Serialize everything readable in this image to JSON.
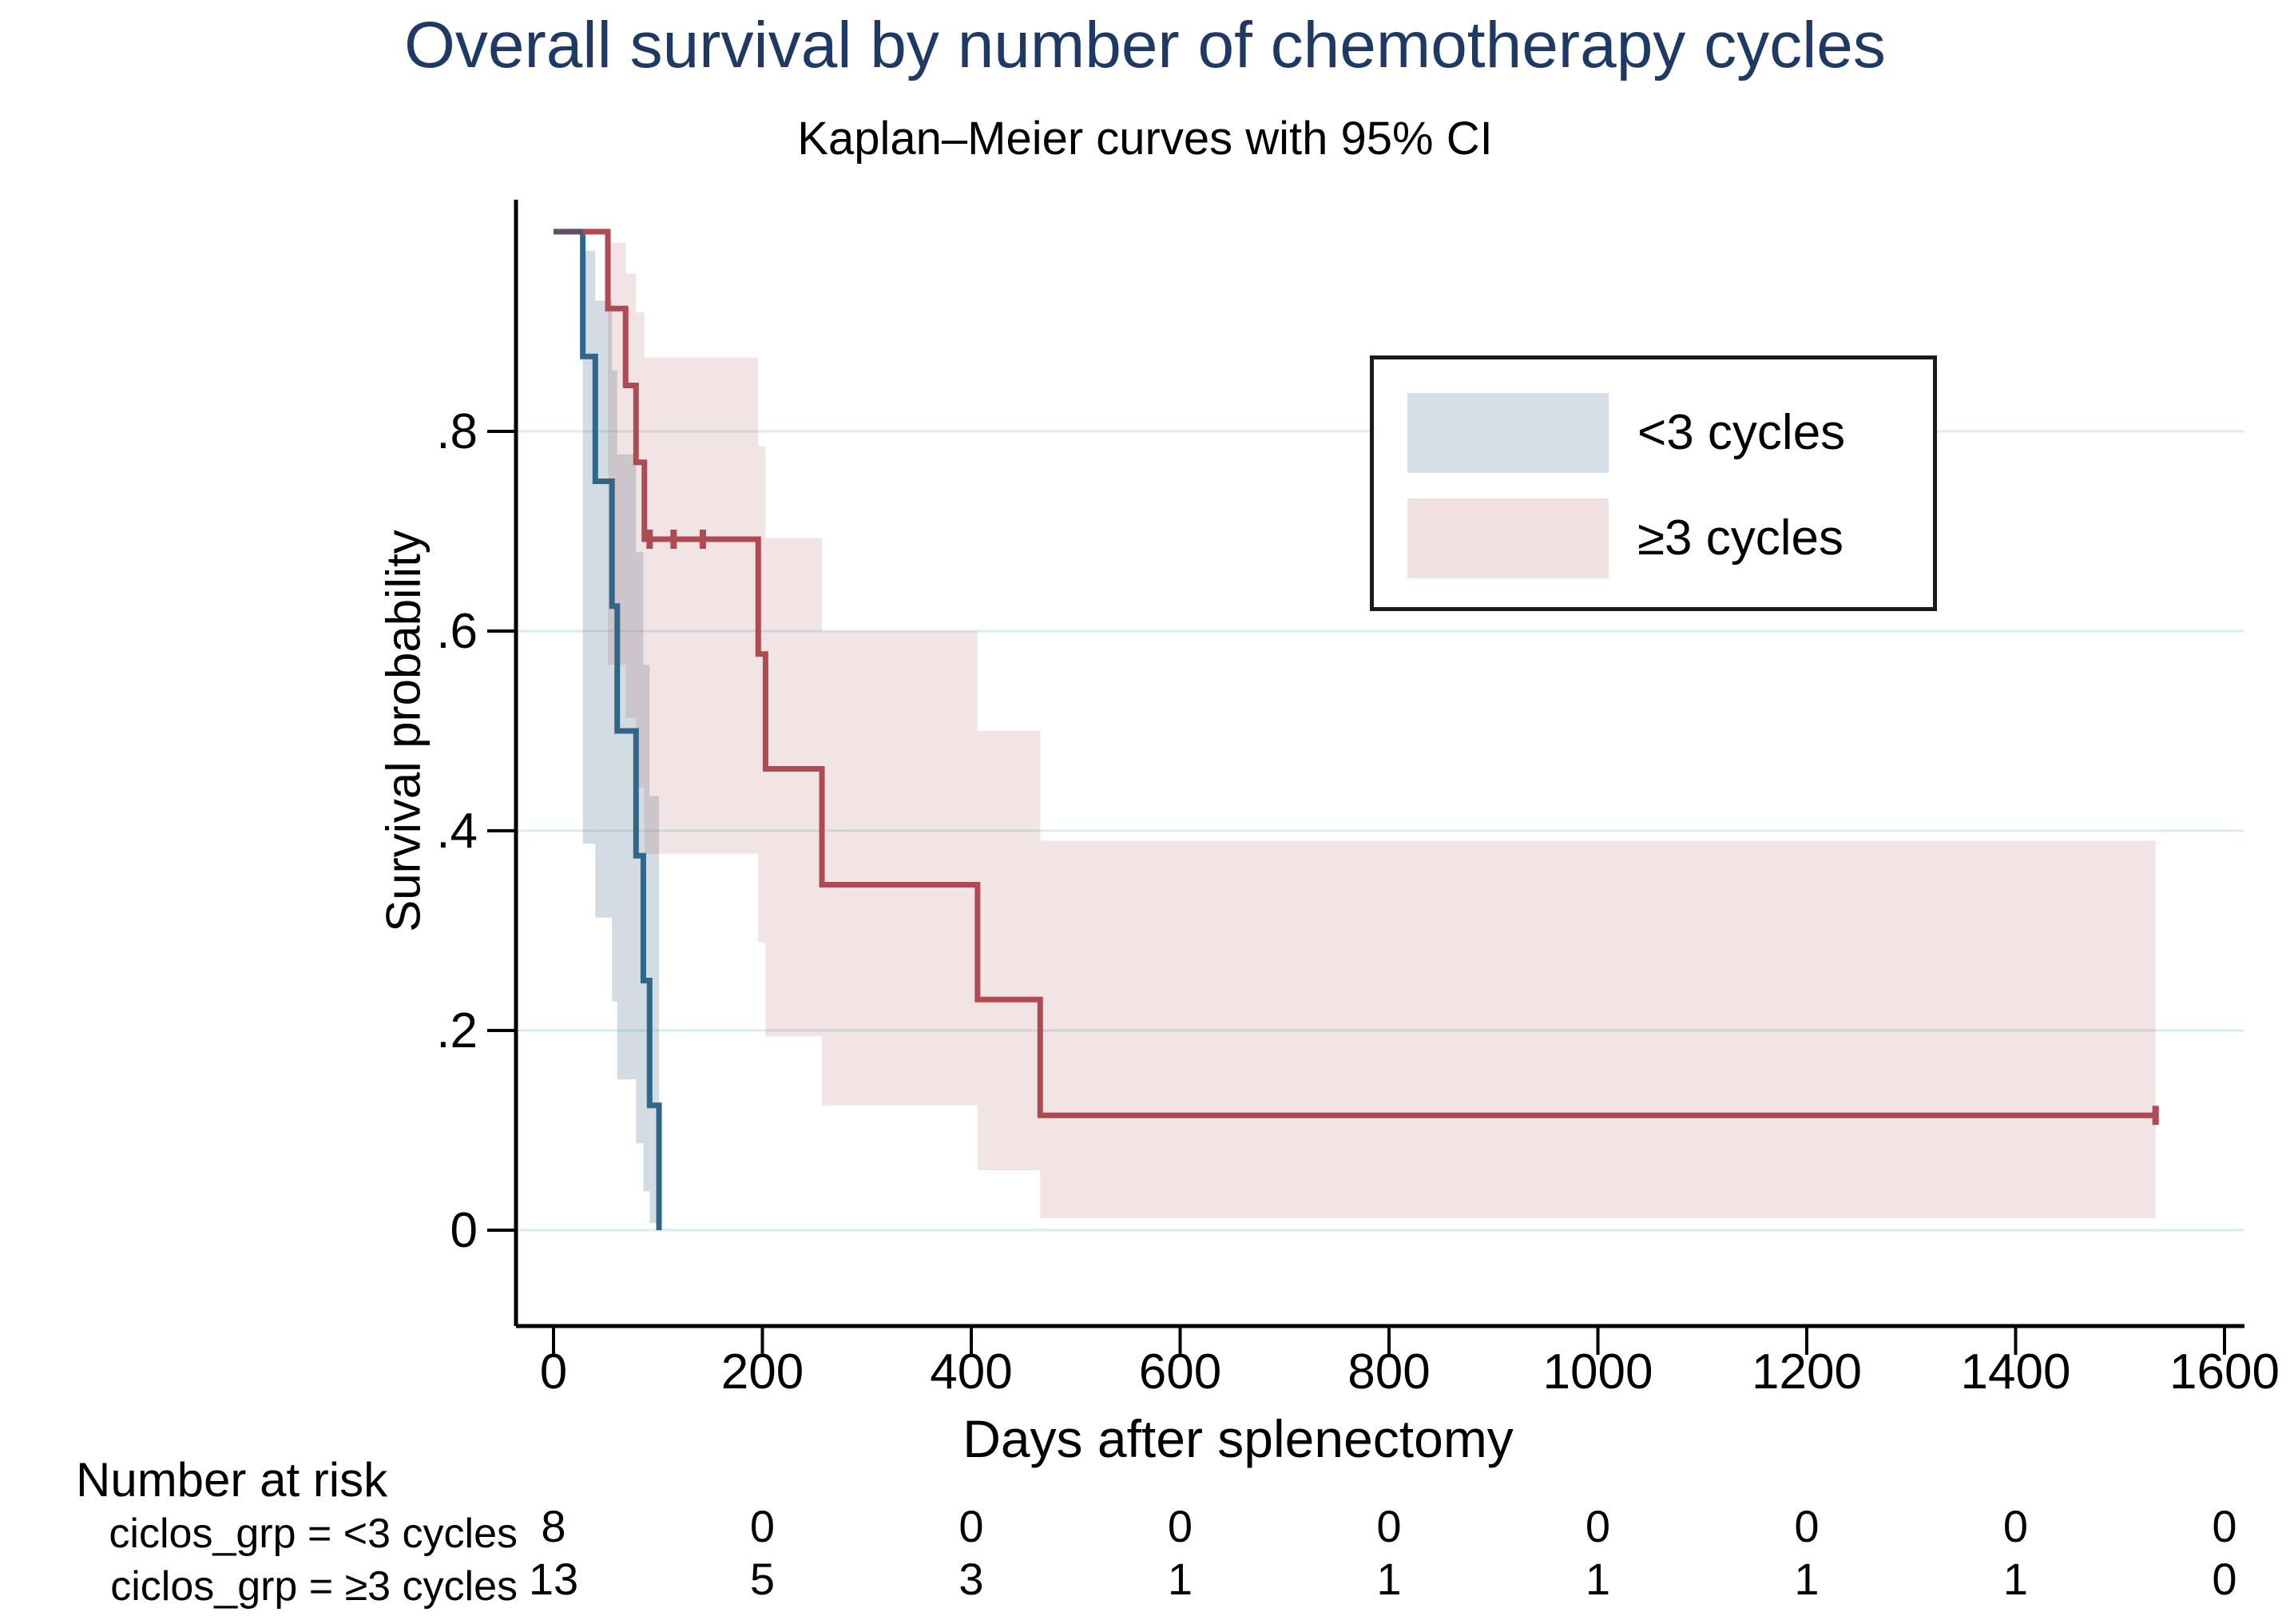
{
  "chart_data": {
    "type": "line",
    "subtype": "kaplan-meier-step",
    "title": "Overall survival by number of chemotherapy cycles",
    "subtitle": "Kaplan–Meier curves with 95% CI",
    "xlabel": "Days after splenectomy",
    "ylabel": "Survival probability",
    "xlim": [
      0,
      1600
    ],
    "ylim": [
      0,
      1
    ],
    "xticks": [
      0,
      200,
      400,
      600,
      800,
      1000,
      1200,
      1400,
      1600
    ],
    "ytick_labels": [
      "0",
      ".2",
      ".4",
      ".6",
      ".8"
    ],
    "ytick_values": [
      0,
      0.2,
      0.4,
      0.6,
      0.8
    ],
    "grid": true,
    "legend_position": "upper-right-inside",
    "series": [
      {
        "name": "<3 cycles",
        "line_color": "#2f6689",
        "ci_fill_color": "rgba(98,128,154,0.28)",
        "legend_swatch_color": "#d5dee6",
        "start": {
          "t": 0,
          "s": 1.0
        },
        "steps": [
          {
            "t": 28,
            "s": 0.875
          },
          {
            "t": 40,
            "s": 0.75
          },
          {
            "t": 56,
            "s": 0.625
          },
          {
            "t": 61,
            "s": 0.5
          },
          {
            "t": 79,
            "s": 0.375
          },
          {
            "t": 86,
            "s": 0.25
          },
          {
            "t": 92,
            "s": 0.125
          },
          {
            "t": 101,
            "s": 0.0
          }
        ],
        "end_t": 101,
        "censor_marks": [],
        "ci_intervals": [
          [
            28,
            40,
            0.387,
            0.981
          ],
          [
            40,
            56,
            0.313,
            0.931
          ],
          [
            56,
            61,
            0.229,
            0.861
          ],
          [
            61,
            79,
            0.151,
            0.777
          ],
          [
            79,
            86,
            0.087,
            0.679
          ],
          [
            86,
            92,
            0.039,
            0.566
          ],
          [
            92,
            101,
            0.007,
            0.435
          ]
        ]
      },
      {
        "name": "≥3 cycles",
        "line_color": "#ae4a52",
        "ci_fill_color": "rgba(174,74,82,0.155)",
        "legend_swatch_color": "#f2e1e3",
        "start": {
          "t": 0,
          "s": 1.0
        },
        "steps": [
          {
            "t": 52,
            "s": 0.923
          },
          {
            "t": 69,
            "s": 0.846
          },
          {
            "t": 79,
            "s": 0.769
          },
          {
            "t": 87,
            "s": 0.692
          },
          {
            "t": 196,
            "s": 0.577
          },
          {
            "t": 203,
            "s": 0.462
          },
          {
            "t": 257,
            "s": 0.346
          },
          {
            "t": 406,
            "s": 0.231
          },
          {
            "t": 466,
            "s": 0.115
          }
        ],
        "end_t": 1534,
        "censor_marks": [
          {
            "t": 92,
            "s": 0.692
          },
          {
            "t": 115,
            "s": 0.692
          },
          {
            "t": 143,
            "s": 0.692
          },
          {
            "t": 1534,
            "s": 0.115
          }
        ],
        "ci_intervals": [
          [
            52,
            69,
            0.566,
            0.989
          ],
          [
            69,
            79,
            0.513,
            0.958
          ],
          [
            79,
            87,
            0.443,
            0.919
          ],
          [
            87,
            196,
            0.377,
            0.874
          ],
          [
            196,
            203,
            0.288,
            0.785
          ],
          [
            203,
            257,
            0.194,
            0.693
          ],
          [
            257,
            406,
            0.125,
            0.6
          ],
          [
            406,
            466,
            0.06,
            0.5
          ],
          [
            466,
            1534,
            0.012,
            0.39
          ]
        ]
      }
    ],
    "overlap_segment": {
      "t0": 0,
      "t1": 28,
      "s": 1.0,
      "color": "#5d4f66"
    },
    "risk_table": {
      "heading": "Number at risk",
      "times": [
        0,
        200,
        400,
        600,
        800,
        1000,
        1200,
        1400,
        1600
      ],
      "rows": [
        {
          "label": "ciclos_grp = <3 cycles",
          "values": [
            8,
            0,
            0,
            0,
            0,
            0,
            0,
            0,
            0
          ]
        },
        {
          "label": "ciclos_grp = ≥3 cycles",
          "values": [
            13,
            5,
            3,
            1,
            1,
            1,
            1,
            1,
            0
          ]
        }
      ]
    },
    "colors": {
      "title": "#1e3a64",
      "axis": "#000000",
      "gridline": "#d9edec",
      "text": "#000000"
    }
  }
}
